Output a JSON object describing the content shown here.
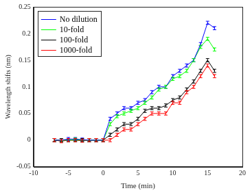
{
  "chart_data": {
    "type": "line",
    "xlabel": "Time (min)",
    "ylabel": "Wavelength shifts (nm)",
    "x": [
      -7,
      -6,
      -5,
      -4,
      -3,
      -2,
      -1,
      0,
      1,
      2,
      3,
      4,
      5,
      6,
      7,
      8,
      9,
      10,
      11,
      12,
      13,
      14,
      15,
      16
    ],
    "series": [
      {
        "name": "No dilution",
        "color": "#0000ff",
        "values": [
          0,
          0,
          0.002,
          0.002,
          0.001,
          0,
          0,
          0,
          0.04,
          0.05,
          0.06,
          0.06,
          0.07,
          0.075,
          0.09,
          0.1,
          0.1,
          0.12,
          0.13,
          0.14,
          0.15,
          0.18,
          0.22,
          0.21
        ],
        "errors": [
          0.003,
          0.003,
          0.003,
          0.003,
          0.003,
          0.003,
          0.003,
          0.003,
          0.003,
          0.003,
          0.003,
          0.003,
          0.003,
          0.003,
          0.003,
          0.003,
          0.003,
          0.003,
          0.003,
          0.003,
          0.003,
          0.003,
          0.003,
          0.003
        ]
      },
      {
        "name": "10-fold",
        "color": "#00ff00",
        "values": [
          0,
          0,
          0,
          0.001,
          0,
          0,
          0,
          0,
          0.03,
          0.045,
          0.05,
          0.055,
          0.06,
          0.07,
          0.08,
          0.095,
          0.1,
          0.115,
          0.12,
          0.13,
          0.15,
          0.175,
          0.19,
          0.17
        ],
        "errors": [
          0.003,
          0.003,
          0.003,
          0.003,
          0.003,
          0.003,
          0.003,
          0.003,
          0.003,
          0.003,
          0.003,
          0.003,
          0.003,
          0.003,
          0.003,
          0.003,
          0.003,
          0.003,
          0.003,
          0.003,
          0.003,
          0.003,
          0.003,
          0.003
        ]
      },
      {
        "name": "100-fold",
        "color": "#000000",
        "values": [
          0,
          0,
          0,
          0,
          0,
          0,
          0,
          0,
          0.01,
          0.02,
          0.03,
          0.03,
          0.04,
          0.055,
          0.06,
          0.06,
          0.065,
          0.075,
          0.08,
          0.095,
          0.11,
          0.13,
          0.15,
          0.13
        ],
        "errors": [
          0.003,
          0.003,
          0.003,
          0.003,
          0.003,
          0.003,
          0.003,
          0.003,
          0.003,
          0.003,
          0.003,
          0.003,
          0.003,
          0.003,
          0.003,
          0.003,
          0.003,
          0.003,
          0.003,
          0.003,
          0.003,
          0.003,
          0.003,
          0.003
        ]
      },
      {
        "name": "1000-fold",
        "color": "#ff0000",
        "values": [
          0,
          -0.002,
          0,
          0,
          -0.001,
          0,
          0,
          0,
          0,
          0.01,
          0.02,
          0.02,
          0.03,
          0.04,
          0.05,
          0.05,
          0.05,
          0.07,
          0.07,
          0.09,
          0.1,
          0.12,
          0.14,
          0.12
        ],
        "errors": [
          0.003,
          0.003,
          0.003,
          0.003,
          0.003,
          0.003,
          0.003,
          0.003,
          0.003,
          0.003,
          0.003,
          0.003,
          0.003,
          0.003,
          0.003,
          0.003,
          0.003,
          0.003,
          0.003,
          0.003,
          0.003,
          0.003,
          0.003,
          0.003
        ]
      }
    ],
    "xlim": [
      -10,
      20
    ],
    "xticks": [
      -10,
      -5,
      0,
      5,
      10,
      15,
      20
    ],
    "ylim": [
      -0.05,
      0.25
    ],
    "yticks": [
      -0.05,
      0,
      0.05,
      0.1,
      0.15,
      0.2,
      0.25
    ],
    "grid": false,
    "legend": "upper left"
  }
}
